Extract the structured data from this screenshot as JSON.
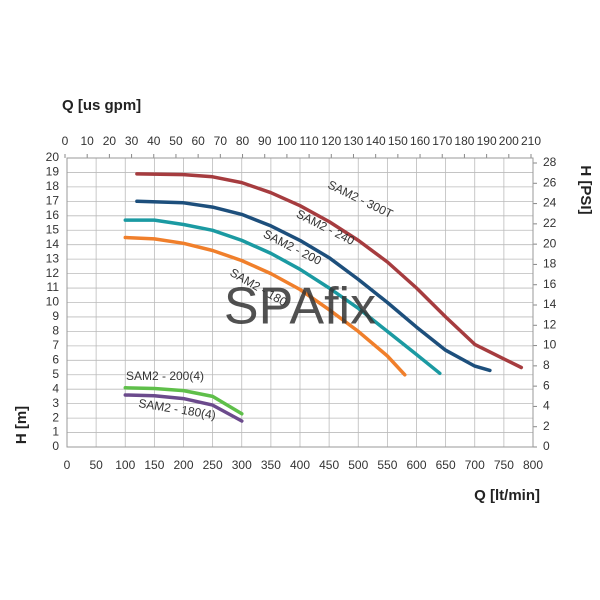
{
  "chart_data": {
    "type": "line",
    "xlabel": "Q [lt/min]",
    "x2label": "Q [us gpm]",
    "ylabel": "H [m]",
    "y2label": "H [PSI]",
    "watermark": "SPAfix",
    "xlim": [
      0,
      800
    ],
    "xticks": [
      0,
      50,
      100,
      150,
      200,
      250,
      300,
      350,
      400,
      450,
      500,
      550,
      600,
      650,
      700,
      750,
      800
    ],
    "x2lim": [
      0,
      210
    ],
    "x2ticks": [
      0,
      10,
      20,
      30,
      40,
      50,
      60,
      70,
      80,
      90,
      100,
      110,
      120,
      130,
      140,
      150,
      160,
      170,
      180,
      190,
      200,
      210
    ],
    "ylim": [
      0,
      20
    ],
    "yticks": [
      0,
      1,
      2,
      3,
      4,
      5,
      6,
      7,
      8,
      9,
      10,
      11,
      12,
      13,
      14,
      15,
      16,
      17,
      18,
      19,
      20
    ],
    "y2lim": [
      0,
      28
    ],
    "y2ticks": [
      0,
      2,
      4,
      6,
      8,
      10,
      12,
      14,
      16,
      18,
      20,
      22,
      24,
      26,
      28
    ],
    "grid": true,
    "series": [
      {
        "name": "SAM2 - 300T",
        "color": "#a63c3f",
        "x": [
          120,
          200,
          250,
          300,
          350,
          400,
          450,
          500,
          550,
          600,
          650,
          700,
          750,
          780
        ],
        "values": [
          18.9,
          18.85,
          18.7,
          18.3,
          17.6,
          16.7,
          15.6,
          14.3,
          12.8,
          11,
          9,
          7.1,
          6.1,
          5.5
        ]
      },
      {
        "name": "SAM2 - 240",
        "color": "#1d4f7c",
        "x": [
          120,
          200,
          250,
          300,
          350,
          400,
          450,
          500,
          550,
          600,
          650,
          700,
          726
        ],
        "values": [
          17,
          16.9,
          16.6,
          16.1,
          15.3,
          14.3,
          13.1,
          11.6,
          10,
          8.3,
          6.7,
          5.6,
          5.3
        ]
      },
      {
        "name": "SAM2 - 200",
        "color": "#1b9aa2",
        "x": [
          100,
          150,
          200,
          250,
          300,
          350,
          400,
          450,
          500,
          550,
          600,
          640
        ],
        "values": [
          15.7,
          15.7,
          15.4,
          15,
          14.3,
          13.4,
          12.3,
          11,
          9.6,
          8,
          6.4,
          5.1
        ]
      },
      {
        "name": "SAM2 - 180",
        "color": "#f07f2b",
        "x": [
          100,
          150,
          200,
          250,
          300,
          350,
          400,
          450,
          500,
          550,
          580
        ],
        "values": [
          14.5,
          14.4,
          14.1,
          13.6,
          12.9,
          12,
          10.9,
          9.5,
          8,
          6.3,
          5
        ]
      },
      {
        "name": "SAM2 - 200(4)",
        "color": "#5fbf4a",
        "x": [
          100,
          150,
          200,
          250,
          300
        ],
        "values": [
          4.1,
          4.05,
          3.9,
          3.5,
          2.3
        ]
      },
      {
        "name": "SAM2 - 180(4)",
        "color": "#6b4a8c",
        "x": [
          100,
          150,
          200,
          250,
          300
        ],
        "values": [
          3.6,
          3.55,
          3.35,
          2.9,
          1.8
        ]
      }
    ]
  }
}
